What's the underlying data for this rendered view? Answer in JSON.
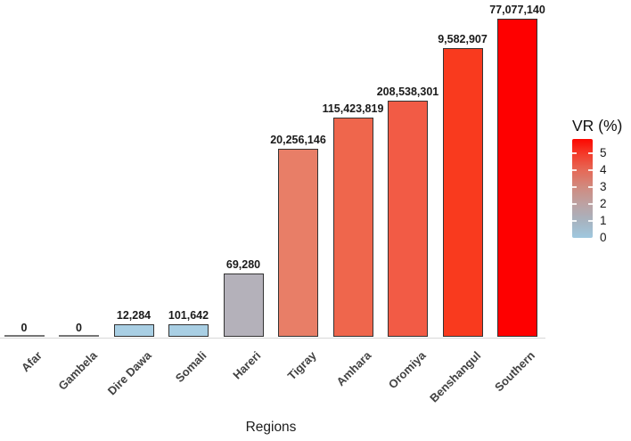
{
  "chart_data": {
    "type": "bar",
    "title": "",
    "xlabel": "Regions",
    "value_axis_visible": false,
    "grid": false,
    "vr_axis_range_pct": [
      0,
      5.85
    ],
    "categories": [
      "Afar",
      "Gambela",
      "Dire Dawa",
      "Somali",
      "Hareri",
      "Tigray",
      "Amhara",
      "Oromiya",
      "Benshangul",
      "Southern"
    ],
    "value_labels": [
      "0",
      "0",
      "12,284",
      "101,642",
      "69,280",
      "20,256,146",
      "115,423,819",
      "208,538,301",
      "9,582,907",
      "77,077,140"
    ],
    "bars": [
      {
        "region": "Afar",
        "label": "0",
        "vr_pct": 0,
        "fill": null
      },
      {
        "region": "Gambela",
        "label": "0",
        "vr_pct": 0,
        "fill": null
      },
      {
        "region": "Dire Dawa",
        "label": "12,284",
        "vr_pct": 0.22,
        "fill": "#A9CFE4"
      },
      {
        "region": "Somali",
        "label": "101,642",
        "vr_pct": 0.22,
        "fill": "#A9CFE4"
      },
      {
        "region": "Hareri",
        "label": "69,280",
        "vr_pct": 1.1,
        "fill": "#B4B1BA"
      },
      {
        "region": "Tigray",
        "label": "20,256,146",
        "vr_pct": 3.26,
        "fill": "#E87E67"
      },
      {
        "region": "Amhara",
        "label": "115,423,819",
        "vr_pct": 3.8,
        "fill": "#EF664C"
      },
      {
        "region": "Oromiya",
        "label": "208,538,301",
        "vr_pct": 4.09,
        "fill": "#F25B45"
      },
      {
        "region": "Benshangul",
        "label": "9,582,907",
        "vr_pct": 5.0,
        "fill": "#F93A1E"
      },
      {
        "region": "Southern",
        "label": "77,077,140",
        "vr_pct": 5.51,
        "fill": "#FE0000"
      }
    ],
    "legend": {
      "title": "VR (%)",
      "position": "right",
      "ticks": [
        0,
        1,
        2,
        3,
        4,
        5
      ],
      "gradient_stops": [
        {
          "color": "#9FC8DF",
          "pct_from_bottom": 0
        },
        {
          "color": "#A7B3C0",
          "pct_from_bottom": 17
        },
        {
          "color": "#BCA2A3",
          "pct_from_bottom": 34
        },
        {
          "color": "#D08B80",
          "pct_from_bottom": 51
        },
        {
          "color": "#E56A58",
          "pct_from_bottom": 68
        },
        {
          "color": "#F43B2A",
          "pct_from_bottom": 85
        },
        {
          "color": "#FC0700",
          "pct_from_bottom": 100
        }
      ]
    },
    "colors": {
      "bar_border": "#333333",
      "zero_bar_line": "#757575",
      "value_label_text": "#1a1a1a",
      "axis_tick_text": "#424242",
      "axis_title_text": "#1c1c1c"
    }
  }
}
